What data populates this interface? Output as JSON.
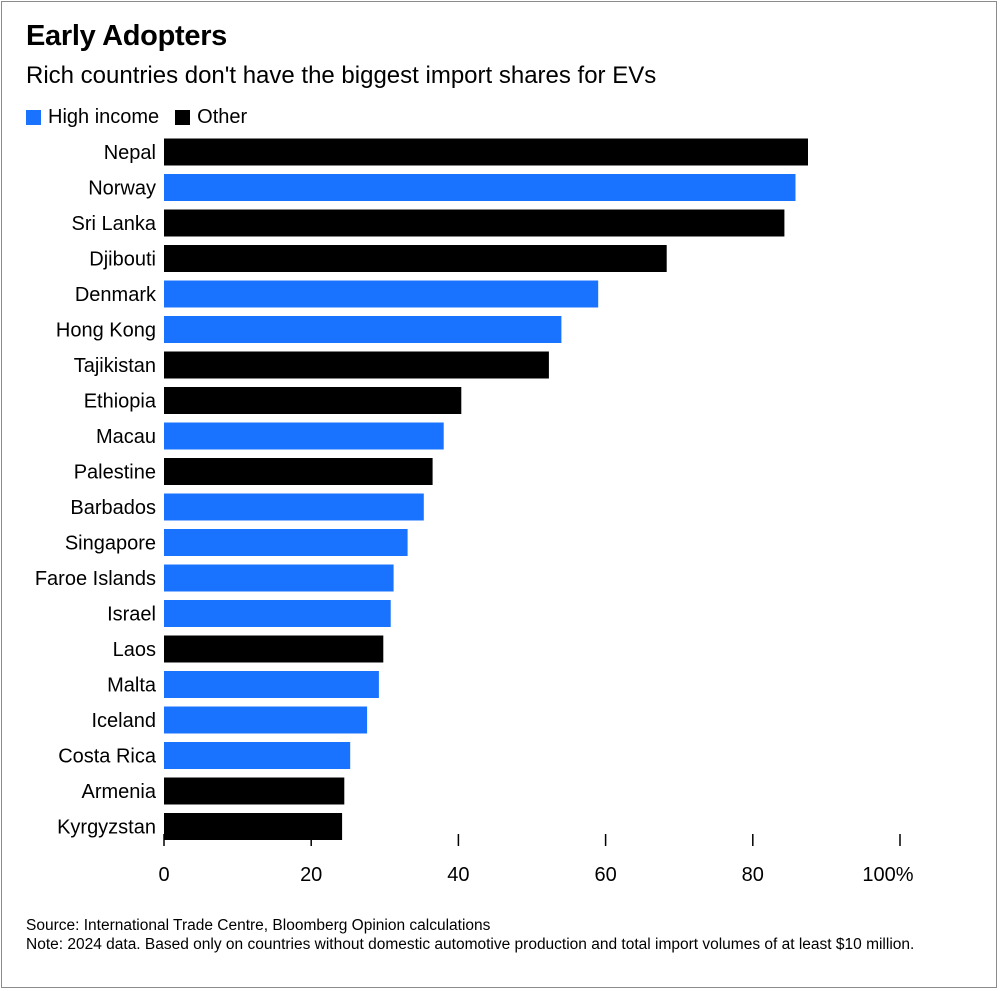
{
  "chart_data": {
    "type": "bar",
    "orientation": "horizontal",
    "title": "Early Adopters",
    "subtitle": "Rich countries don't have the biggest import shares for EVs",
    "xlim": [
      0,
      100
    ],
    "xticks": [
      {
        "value": 0,
        "label": "0"
      },
      {
        "value": 20,
        "label": "20"
      },
      {
        "value": 40,
        "label": "40"
      },
      {
        "value": 60,
        "label": "60"
      },
      {
        "value": 80,
        "label": "80"
      },
      {
        "value": 100,
        "label": "100%"
      }
    ],
    "legend": [
      {
        "key": "high",
        "label": "High income",
        "color": "#1a73ff"
      },
      {
        "key": "other",
        "label": "Other",
        "color": "#000000"
      }
    ],
    "legend_position": "top-left",
    "grid": false,
    "bars": [
      {
        "category": "Nepal",
        "value": 87.5,
        "group": "other"
      },
      {
        "category": "Norway",
        "value": 85.8,
        "group": "high"
      },
      {
        "category": "Sri Lanka",
        "value": 84.3,
        "group": "other"
      },
      {
        "category": "Djibouti",
        "value": 68.3,
        "group": "other"
      },
      {
        "category": "Denmark",
        "value": 59.0,
        "group": "high"
      },
      {
        "category": "Hong Kong",
        "value": 54.0,
        "group": "high"
      },
      {
        "category": "Tajikistan",
        "value": 52.3,
        "group": "other"
      },
      {
        "category": "Ethiopia",
        "value": 40.4,
        "group": "other"
      },
      {
        "category": "Macau",
        "value": 38.0,
        "group": "high"
      },
      {
        "category": "Palestine",
        "value": 36.5,
        "group": "other"
      },
      {
        "category": "Barbados",
        "value": 35.3,
        "group": "high"
      },
      {
        "category": "Singapore",
        "value": 33.1,
        "group": "high"
      },
      {
        "category": "Faroe Islands",
        "value": 31.2,
        "group": "high"
      },
      {
        "category": "Israel",
        "value": 30.8,
        "group": "high"
      },
      {
        "category": "Laos",
        "value": 29.8,
        "group": "other"
      },
      {
        "category": "Malta",
        "value": 29.2,
        "group": "high"
      },
      {
        "category": "Iceland",
        "value": 27.6,
        "group": "high"
      },
      {
        "category": "Costa Rica",
        "value": 25.3,
        "group": "high"
      },
      {
        "category": "Armenia",
        "value": 24.5,
        "group": "other"
      },
      {
        "category": "Kyrgyzstan",
        "value": 24.2,
        "group": "other"
      }
    ]
  },
  "footer": {
    "source": "Source: International Trade Centre, Bloomberg Opinion calculations",
    "note": "Note: 2024 data. Based only on countries without domestic automotive production and total import volumes of at least $10 million."
  }
}
